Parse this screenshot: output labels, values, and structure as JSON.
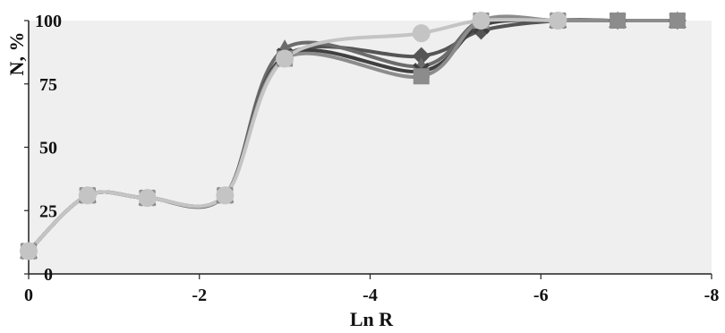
{
  "chart_data": {
    "type": "line",
    "title": "",
    "xlabel": "Ln R",
    "ylabel": "N, %",
    "xlim": [
      0,
      -8
    ],
    "ylim": [
      0,
      100
    ],
    "x_ticks": [
      "0",
      "-2",
      "-4",
      "-6",
      "-8"
    ],
    "y_ticks": [
      "0",
      "25",
      "50",
      "75",
      "100"
    ],
    "x_tick_values": [
      0,
      -2,
      -4,
      -6,
      -8
    ],
    "y_tick_values": [
      0,
      25,
      50,
      75,
      100
    ],
    "grid": false,
    "legend": "none",
    "plot_background": "#efefef",
    "series": [
      {
        "marker": "diamond",
        "color": "#555555",
        "x": [
          0,
          -0.69,
          -1.39,
          -2.3,
          -3.0,
          -4.6,
          -5.3,
          -6.2,
          -6.9,
          -7.6
        ],
        "y": [
          9,
          31,
          30,
          31,
          86,
          86,
          96,
          100,
          100,
          100
        ]
      },
      {
        "marker": "triangle",
        "color": "#6b6b6b",
        "x": [
          0,
          -0.69,
          -1.39,
          -2.3,
          -3.0,
          -4.6,
          -5.3,
          -6.2,
          -6.9,
          -7.6
        ],
        "y": [
          9,
          31,
          30,
          31,
          89,
          82,
          100,
          100,
          100,
          100
        ]
      },
      {
        "marker": "x",
        "color": "#404040",
        "x": [
          0,
          -0.69,
          -1.39,
          -2.3,
          -3.0,
          -4.6,
          -5.3,
          -6.2,
          -6.9,
          -7.6
        ],
        "y": [
          9,
          31,
          30,
          31,
          86,
          80,
          98,
          100,
          100,
          100
        ]
      },
      {
        "marker": "square",
        "color": "#8c8c8c",
        "x": [
          0,
          -0.69,
          -1.39,
          -2.3,
          -3.0,
          -4.6,
          -5.3,
          -6.2,
          -6.9,
          -7.6
        ],
        "y": [
          9,
          31,
          30,
          31,
          85,
          78,
          100,
          100,
          100,
          100
        ]
      },
      {
        "marker": "circle",
        "color": "#c4c4c4",
        "x": [
          0,
          -0.69,
          -1.39,
          -2.3,
          -3.0,
          -4.6,
          -5.3,
          -6.2
        ],
        "y": [
          9,
          31,
          30,
          31,
          85,
          95,
          100,
          100
        ]
      }
    ]
  }
}
